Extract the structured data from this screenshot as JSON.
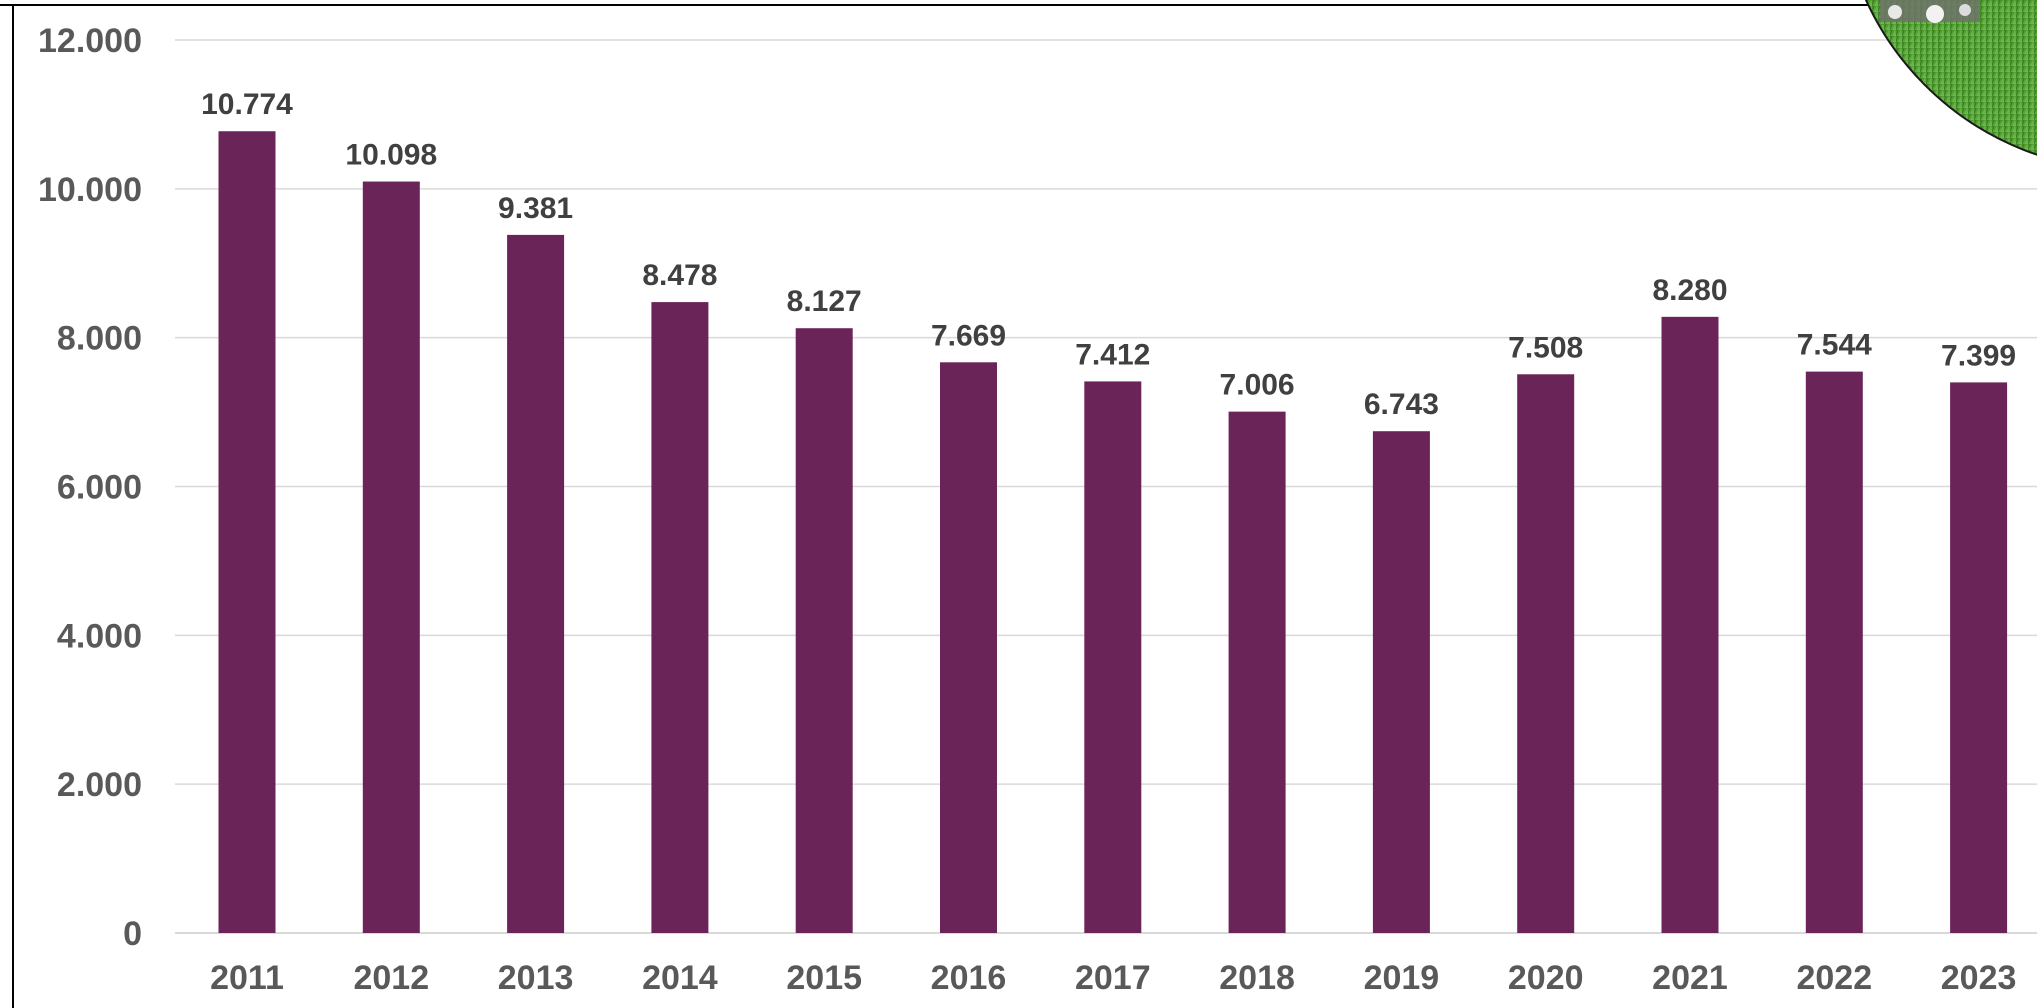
{
  "chart_data": {
    "type": "bar",
    "categories": [
      "2011",
      "2012",
      "2013",
      "2014",
      "2015",
      "2016",
      "2017",
      "2018",
      "2019",
      "2020",
      "2021",
      "2022",
      "2023"
    ],
    "values": [
      10774,
      10098,
      9381,
      8478,
      8127,
      7669,
      7412,
      7006,
      6743,
      7508,
      8280,
      7544,
      7399
    ],
    "data_labels": [
      "10.774",
      "10.098",
      "9.381",
      "8.478",
      "8.127",
      "7.669",
      "7.412",
      "7.006",
      "6.743",
      "7.508",
      "8.280",
      "7.544",
      "7.399"
    ],
    "y_ticks": [
      0,
      2000,
      4000,
      6000,
      8000,
      10000,
      12000
    ],
    "y_tick_labels": [
      "0",
      "2.000",
      "4.000",
      "6.000",
      "8.000",
      "10.000",
      "12.000"
    ],
    "ylim": [
      0,
      12000
    ],
    "grid": true,
    "legend": "none",
    "title": "",
    "xlabel": "",
    "ylabel": ""
  },
  "colors": {
    "bar": "#6b2457",
    "grid": "#d9d9d9",
    "tick_text": "#595959",
    "label_text": "#404040",
    "frame": "#000000",
    "photo_grass": "#4e9a2e"
  },
  "decoration": {
    "icon": "golf-course-photo-icon"
  }
}
